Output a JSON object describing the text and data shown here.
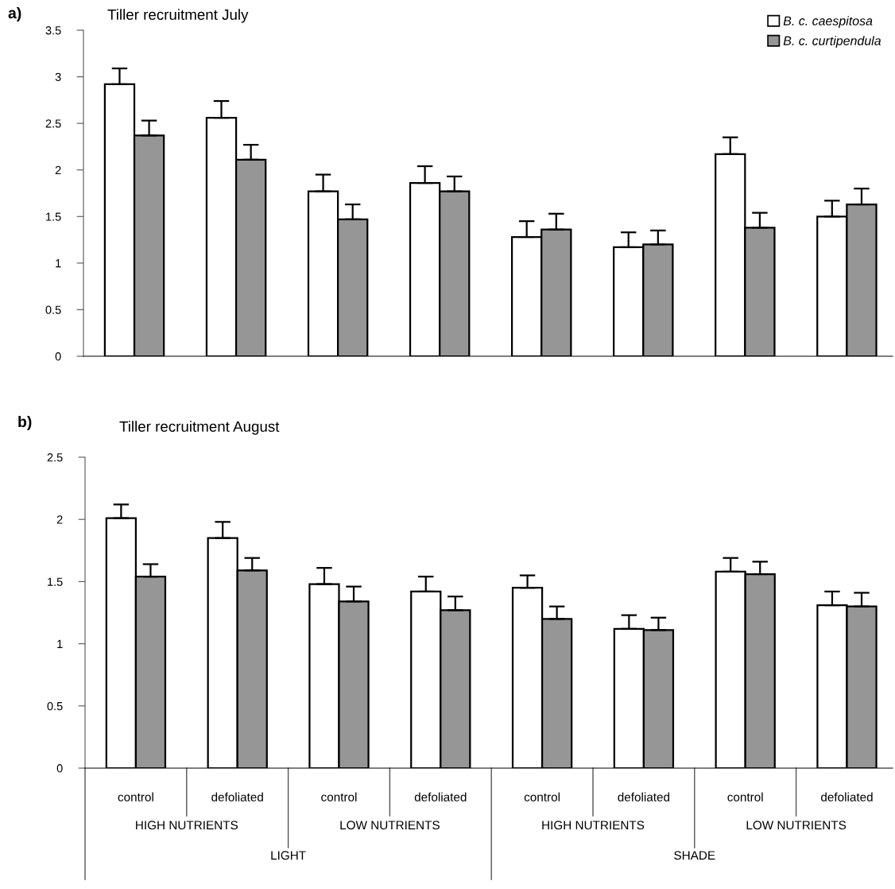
{
  "chart_data": [
    {
      "type": "bar",
      "title": "Tiller recruitment July",
      "annotations": [
        "a)"
      ],
      "categories": [
        null,
        null,
        null,
        null,
        null,
        null,
        null,
        null
      ],
      "series": [
        {
          "name": "B. c. caespitosa",
          "color": "#ffffff",
          "values": [
            2.92,
            2.56,
            1.77,
            1.86,
            1.28,
            1.17,
            2.17,
            1.5
          ],
          "errors": [
            [
              2.92,
              3.09
            ],
            [
              2.56,
              2.74
            ],
            [
              1.77,
              1.95
            ],
            [
              1.86,
              2.04
            ],
            [
              1.28,
              1.45
            ],
            [
              1.17,
              1.33
            ],
            [
              2.17,
              2.35
            ],
            [
              1.5,
              1.67
            ]
          ]
        },
        {
          "name": "B. c. curtipendula",
          "color": "#969696",
          "values": [
            2.37,
            2.11,
            1.47,
            1.77,
            1.36,
            1.2,
            1.38,
            1.63
          ],
          "errors": [
            [
              2.37,
              2.53
            ],
            [
              2.11,
              2.27
            ],
            [
              1.47,
              1.63
            ],
            [
              1.77,
              1.93
            ],
            [
              1.36,
              1.53
            ],
            [
              1.2,
              1.35
            ],
            [
              1.38,
              1.54
            ],
            [
              1.63,
              1.8
            ]
          ]
        }
      ],
      "ylim": [
        0,
        3.5
      ],
      "yticks": [
        0,
        0.5,
        1,
        1.5,
        2,
        2.5,
        3,
        3.5
      ],
      "legend": "top right",
      "tick_labels": "y"
    },
    {
      "type": "bar",
      "title": "Tiller recruitment August",
      "annotations": [
        "b)",
        "HIGH NUTRIENTS",
        "LOW NUTRIENTS",
        "HIGH NUTRIENTS",
        "LOW NUTRIENTS",
        "LIGHT",
        "SHADE"
      ],
      "categories": [
        "control",
        "defoliated",
        "control",
        "defoliated",
        "control",
        "defoliated",
        "control",
        "defoliated"
      ],
      "series": [
        {
          "color": "#ffffff",
          "values": [
            2.01,
            1.85,
            1.48,
            1.42,
            1.45,
            1.12,
            1.58,
            1.31
          ],
          "errors": [
            [
              2.01,
              2.12
            ],
            [
              1.85,
              1.98
            ],
            [
              1.48,
              1.61
            ],
            [
              1.42,
              1.54
            ],
            [
              1.45,
              1.55
            ],
            [
              1.12,
              1.23
            ],
            [
              1.58,
              1.69
            ],
            [
              1.31,
              1.42
            ]
          ]
        },
        {
          "color": "#969696",
          "values": [
            1.54,
            1.59,
            1.34,
            1.27,
            1.2,
            1.11,
            1.56,
            1.3
          ],
          "errors": [
            [
              1.54,
              1.64
            ],
            [
              1.59,
              1.69
            ],
            [
              1.34,
              1.46
            ],
            [
              1.27,
              1.38
            ],
            [
              1.2,
              1.3
            ],
            [
              1.11,
              1.21
            ],
            [
              1.56,
              1.66
            ],
            [
              1.3,
              1.41
            ]
          ]
        }
      ],
      "ylim": [
        0,
        2.5
      ],
      "yticks": [
        0,
        0.5,
        1,
        1.5,
        2,
        2.5
      ]
    }
  ]
}
